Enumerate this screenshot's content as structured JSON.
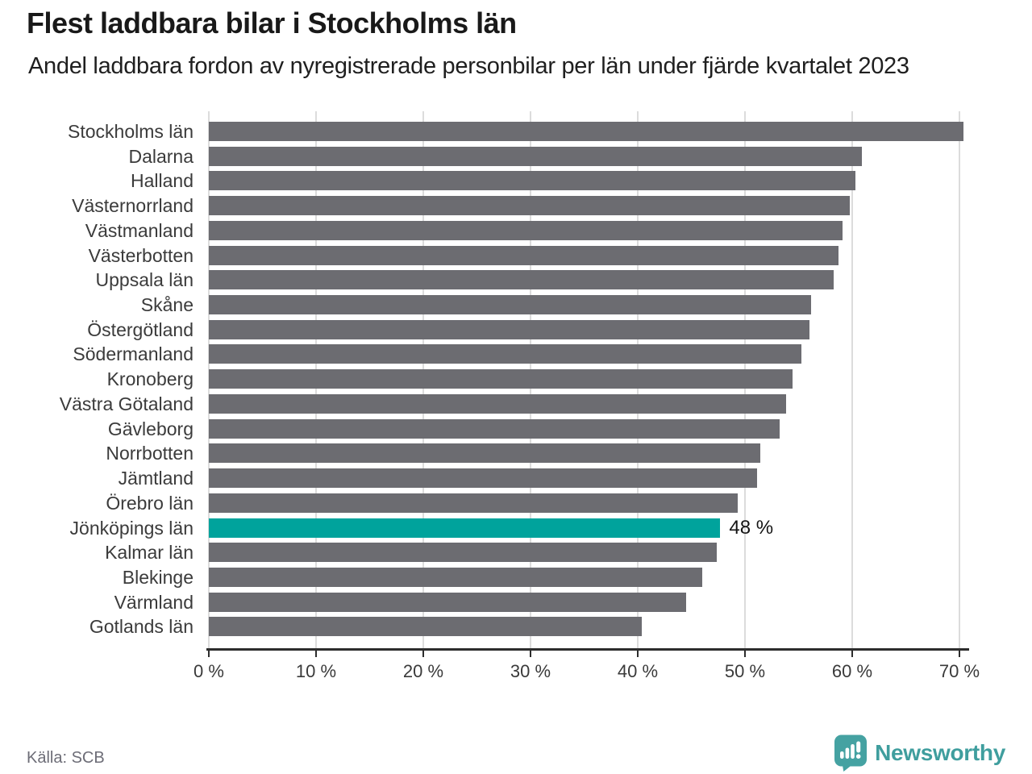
{
  "title": "Flest laddbara bilar i Stockholms län",
  "subtitle": "Andel laddbara fordon av nyregistrerade personbilar per län under fjärde kvartalet 2023",
  "chart_data": {
    "type": "bar",
    "orientation": "horizontal",
    "title": "Flest laddbara bilar i Stockholms län",
    "subtitle": "Andel laddbara fordon av nyregistrerade personbilar per län under fjärde kvartalet 2023",
    "xlabel": "",
    "ylabel": "",
    "unit": "%",
    "xlim": [
      0,
      71
    ],
    "grid": true,
    "legend": false,
    "categories": [
      "Stockholms län",
      "Dalarna",
      "Halland",
      "Västernorrland",
      "Västmanland",
      "Västerbotten",
      "Uppsala län",
      "Skåne",
      "Östergötland",
      "Södermanland",
      "Kronoberg",
      "Västra Götaland",
      "Gävleborg",
      "Norrbotten",
      "Jämtland",
      "Örebro län",
      "Jönköpings län",
      "Kalmar län",
      "Blekinge",
      "Värmland",
      "Gotlands län"
    ],
    "values": [
      70.4,
      60.9,
      60.3,
      59.8,
      59.1,
      58.7,
      58.3,
      56.2,
      56.0,
      55.3,
      54.4,
      53.8,
      53.2,
      51.4,
      51.1,
      49.3,
      47.7,
      47.4,
      46.0,
      44.5,
      40.4
    ],
    "highlight_index": 16,
    "highlight_category": "Jönköpings län",
    "highlight_value_label": "48 %",
    "bar_color": "#6c6c71",
    "highlight_color": "#00a39c",
    "x_tick_values": [
      0,
      10,
      20,
      30,
      40,
      50,
      60,
      70
    ],
    "x_tick_labels": [
      "0 %",
      "10 %",
      "20 %",
      "30 %",
      "40 %",
      "50 %",
      "60 %",
      "70 %"
    ]
  },
  "footer": {
    "source": "Källa: SCB",
    "brand": "Newsworthy",
    "brand_color": "#3f9e9e"
  }
}
